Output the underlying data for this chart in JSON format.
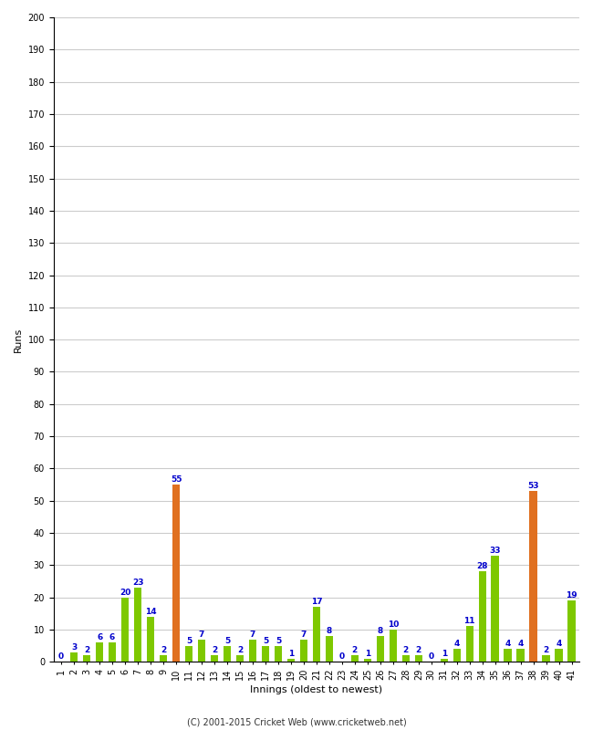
{
  "innings": [
    1,
    2,
    3,
    4,
    5,
    6,
    7,
    8,
    9,
    10,
    11,
    12,
    13,
    14,
    15,
    16,
    17,
    18,
    19,
    20,
    21,
    22,
    23,
    24,
    25,
    26,
    27,
    28,
    29,
    30,
    31,
    32,
    33,
    34,
    35,
    36,
    37,
    38,
    39,
    40,
    41
  ],
  "values": [
    0,
    3,
    2,
    6,
    6,
    20,
    23,
    14,
    2,
    55,
    5,
    7,
    2,
    5,
    2,
    7,
    5,
    5,
    1,
    7,
    17,
    8,
    0,
    2,
    1,
    8,
    10,
    2,
    2,
    0,
    1,
    4,
    11,
    28,
    33,
    4,
    4,
    53,
    2,
    4,
    19
  ],
  "colors": [
    "#7ec800",
    "#7ec800",
    "#7ec800",
    "#7ec800",
    "#7ec800",
    "#7ec800",
    "#7ec800",
    "#7ec800",
    "#7ec800",
    "#e07020",
    "#7ec800",
    "#7ec800",
    "#7ec800",
    "#7ec800",
    "#7ec800",
    "#7ec800",
    "#7ec800",
    "#7ec800",
    "#7ec800",
    "#7ec800",
    "#7ec800",
    "#7ec800",
    "#7ec800",
    "#7ec800",
    "#7ec800",
    "#7ec800",
    "#7ec800",
    "#7ec800",
    "#7ec800",
    "#7ec800",
    "#7ec800",
    "#7ec800",
    "#7ec800",
    "#7ec800",
    "#7ec800",
    "#7ec800",
    "#7ec800",
    "#e07020",
    "#7ec800",
    "#7ec800",
    "#7ec800"
  ],
  "ylabel": "Runs",
  "xlabel": "Innings (oldest to newest)",
  "ylim": [
    0,
    200
  ],
  "yticks": [
    0,
    10,
    20,
    30,
    40,
    50,
    60,
    70,
    80,
    90,
    100,
    110,
    120,
    130,
    140,
    150,
    160,
    170,
    180,
    190,
    200
  ],
  "label_fontsize": 8,
  "tick_fontsize": 7,
  "value_fontsize": 6.5,
  "value_color": "#0000cc",
  "bg_color": "#ffffff",
  "grid_color": "#cccccc",
  "footer": "(C) 2001-2015 Cricket Web (www.cricketweb.net)"
}
